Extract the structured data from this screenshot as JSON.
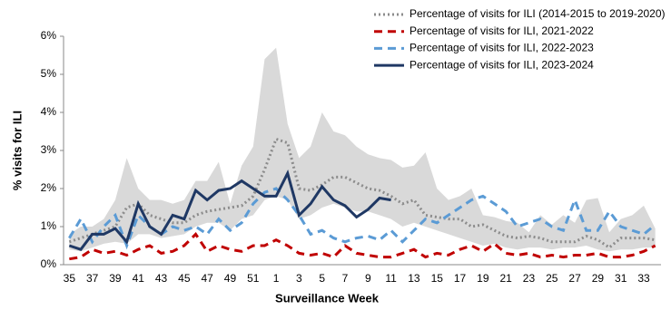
{
  "chart_data": {
    "type": "line",
    "xlabel": "Surveillance Week",
    "ylabel": "% visits for ILI",
    "categories": [
      "35",
      null,
      "37",
      null,
      "39",
      null,
      "41",
      null,
      "43",
      null,
      "45",
      null,
      "47",
      null,
      "49",
      null,
      "51",
      null,
      "1",
      null,
      "3",
      null,
      "5",
      null,
      "7",
      null,
      "9",
      null,
      "11",
      null,
      "13",
      null,
      "15",
      null,
      "17",
      null,
      "19",
      null,
      "21",
      null,
      "23",
      null,
      "25",
      null,
      "27",
      null,
      "29",
      null,
      "31",
      null,
      "33",
      null
    ],
    "ylim": [
      0,
      6
    ],
    "yticks": [
      {
        "value": 0,
        "label": "0%"
      },
      {
        "value": 1,
        "label": "1%"
      },
      {
        "value": 2,
        "label": "2%"
      },
      {
        "value": 3,
        "label": "3%"
      },
      {
        "value": 4,
        "label": "4%"
      },
      {
        "value": 5,
        "label": "5%"
      },
      {
        "value": 6,
        "label": "6%"
      }
    ],
    "legend": "top-right",
    "band": {
      "color": "#d9d9d9",
      "upper": [
        0.8,
        1.0,
        1.0,
        1.2,
        1.7,
        2.8,
        2.0,
        1.7,
        1.7,
        1.6,
        1.7,
        2.2,
        2.2,
        2.7,
        1.6,
        2.6,
        3.1,
        5.4,
        5.7,
        3.7,
        2.8,
        3.1,
        4.0,
        3.5,
        3.4,
        3.1,
        2.9,
        2.8,
        2.75,
        2.55,
        2.6,
        2.95,
        2.0,
        1.7,
        1.8,
        2.0,
        1.3,
        1.25,
        1.15,
        1.1,
        0.85,
        1.3,
        1.05,
        1.3,
        1.1,
        1.7,
        1.75,
        0.85,
        1.2,
        1.3,
        1.55,
        0.95
      ],
      "lower": [
        0.4,
        0.35,
        0.45,
        0.55,
        0.6,
        0.55,
        0.8,
        0.8,
        0.7,
        0.75,
        0.8,
        1.0,
        1.1,
        1.1,
        0.9,
        1.2,
        1.3,
        1.7,
        1.8,
        1.7,
        1.2,
        1.3,
        1.5,
        1.6,
        1.5,
        1.4,
        1.4,
        1.3,
        1.2,
        1.0,
        1.1,
        1.0,
        0.9,
        0.8,
        0.7,
        0.6,
        0.5,
        0.55,
        0.45,
        0.4,
        0.45,
        0.45,
        0.4,
        0.45,
        0.45,
        0.5,
        0.4,
        0.35,
        0.4,
        0.4,
        0.45,
        0.45
      ]
    },
    "series": [
      {
        "name": "Percentage of visits for ILI (2014-2015 to 2019-2020)",
        "color": "#8c8c8c",
        "dash": "dotted",
        "values": [
          0.6,
          0.7,
          0.8,
          0.9,
          1.0,
          1.5,
          1.6,
          1.3,
          1.2,
          1.1,
          1.1,
          1.3,
          1.4,
          1.45,
          1.5,
          1.55,
          1.8,
          2.5,
          3.3,
          3.2,
          2.0,
          1.95,
          2.1,
          2.3,
          2.3,
          2.15,
          2.0,
          1.95,
          1.8,
          1.6,
          1.7,
          1.3,
          1.25,
          1.2,
          1.2,
          1.0,
          1.05,
          0.9,
          0.75,
          0.7,
          0.75,
          0.7,
          0.6,
          0.6,
          0.6,
          0.75,
          0.65,
          0.45,
          0.7,
          0.7,
          0.7,
          0.65
        ]
      },
      {
        "name": "Percentage of visits for ILI, 2021-2022",
        "color": "#c00000",
        "dash": "dashed",
        "values": [
          0.15,
          0.2,
          0.4,
          0.3,
          0.35,
          0.25,
          0.4,
          0.5,
          0.3,
          0.35,
          0.5,
          0.8,
          0.35,
          0.5,
          0.4,
          0.35,
          0.5,
          0.5,
          0.65,
          0.5,
          0.3,
          0.25,
          0.3,
          0.2,
          0.5,
          0.3,
          0.25,
          0.2,
          0.2,
          0.3,
          0.4,
          0.2,
          0.3,
          0.25,
          0.4,
          0.5,
          0.35,
          0.55,
          0.3,
          0.25,
          0.3,
          0.2,
          0.25,
          0.2,
          0.25,
          0.25,
          0.3,
          0.2,
          0.2,
          0.25,
          0.35,
          0.5
        ]
      },
      {
        "name": "Percentage of visits for ILI, 2022-2023",
        "color": "#5b9bd5",
        "dash": "dashed",
        "values": [
          0.7,
          1.2,
          0.6,
          1.0,
          1.3,
          0.5,
          1.3,
          1.0,
          0.8,
          1.0,
          0.9,
          1.0,
          0.8,
          1.2,
          0.9,
          1.1,
          1.6,
          1.9,
          2.0,
          1.7,
          1.3,
          0.8,
          0.9,
          0.7,
          0.6,
          0.7,
          0.75,
          0.65,
          0.9,
          0.6,
          0.9,
          1.2,
          1.1,
          1.3,
          1.5,
          1.7,
          1.8,
          1.6,
          1.4,
          1.0,
          1.1,
          1.2,
          1.0,
          0.9,
          1.7,
          0.9,
          0.9,
          1.4,
          1.0,
          0.9,
          0.8,
          1.05
        ]
      },
      {
        "name": "Percentage of visits for ILI, 2023-2024",
        "color": "#1f3864",
        "dash": "solid",
        "values": [
          0.5,
          0.4,
          0.8,
          0.8,
          0.95,
          0.6,
          1.6,
          1.0,
          0.8,
          1.3,
          1.2,
          1.95,
          1.7,
          1.95,
          2.0,
          2.2,
          2.0,
          1.8,
          1.8,
          2.4,
          1.3,
          1.6,
          2.05,
          1.7,
          1.55,
          1.25,
          1.45,
          1.75,
          1.7,
          null,
          null,
          null,
          null,
          null,
          null,
          null,
          null,
          null,
          null,
          null,
          null,
          null,
          null,
          null,
          null,
          null,
          null,
          null,
          null,
          null,
          null,
          null
        ]
      }
    ]
  }
}
